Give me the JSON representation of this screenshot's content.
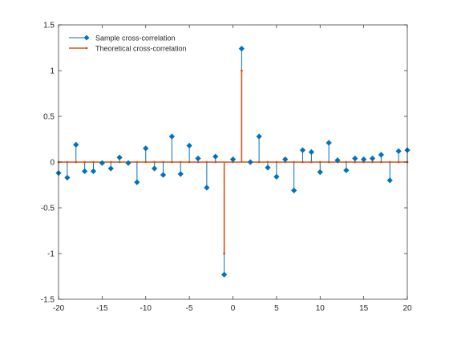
{
  "chart_data": {
    "type": "stem",
    "title": "",
    "xlabel": "",
    "ylabel": "",
    "xlim": [
      -20,
      20
    ],
    "ylim": [
      -1.5,
      1.5
    ],
    "grid": false,
    "box": true,
    "legend_location": "top-left",
    "x_ticks": [
      -20,
      -15,
      -10,
      -5,
      0,
      5,
      10,
      15,
      20
    ],
    "x_tick_labels": [
      "-20",
      "-15",
      "-10",
      "-5",
      "0",
      "5",
      "10",
      "15",
      "20"
    ],
    "y_ticks": [
      -1.5,
      -1,
      -0.5,
      0,
      0.5,
      1,
      1.5
    ],
    "y_tick_labels": [
      "-1.5",
      "-1",
      "-0.5",
      "0",
      "0.5",
      "1",
      "1.5"
    ],
    "series": [
      {
        "name": "Sample cross-correlation",
        "color": "#0072BD",
        "marker": "diamond",
        "x": [
          -20,
          -19,
          -18,
          -17,
          -16,
          -15,
          -14,
          -13,
          -12,
          -11,
          -10,
          -9,
          -8,
          -7,
          -6,
          -5,
          -4,
          -3,
          -2,
          -1,
          0,
          1,
          2,
          3,
          4,
          5,
          6,
          7,
          8,
          9,
          10,
          11,
          12,
          13,
          14,
          15,
          16,
          17,
          18,
          19,
          20
        ],
        "values": [
          -0.12,
          -0.17,
          0.19,
          -0.1,
          -0.1,
          -0.01,
          -0.07,
          0.05,
          -0.01,
          -0.22,
          0.15,
          -0.07,
          -0.14,
          0.28,
          -0.13,
          0.18,
          0.04,
          -0.28,
          0.06,
          -1.23,
          0.03,
          1.24,
          0.0,
          0.28,
          -0.06,
          -0.16,
          0.03,
          -0.31,
          0.13,
          0.11,
          -0.11,
          0.21,
          0.02,
          -0.09,
          0.04,
          0.03,
          0.04,
          0.08,
          -0.2,
          0.12,
          0.13
        ]
      },
      {
        "name": "Theoretical cross-correlation",
        "color": "#D95319",
        "marker": "dot",
        "x": [
          -20,
          -19,
          -18,
          -17,
          -16,
          -15,
          -14,
          -13,
          -12,
          -11,
          -10,
          -9,
          -8,
          -7,
          -6,
          -5,
          -4,
          -3,
          -2,
          -1,
          0,
          1,
          2,
          3,
          4,
          5,
          6,
          7,
          8,
          9,
          10,
          11,
          12,
          13,
          14,
          15,
          16,
          17,
          18,
          19,
          20
        ],
        "values": [
          0,
          0,
          0,
          0,
          0,
          0,
          0,
          0,
          0,
          0,
          0,
          0,
          0,
          0,
          0,
          0,
          0,
          0,
          0,
          -1,
          0,
          1,
          0,
          0,
          0,
          0,
          0,
          0,
          0,
          0,
          0,
          0,
          0,
          0,
          0,
          0,
          0,
          0,
          0,
          0,
          0
        ]
      }
    ]
  }
}
